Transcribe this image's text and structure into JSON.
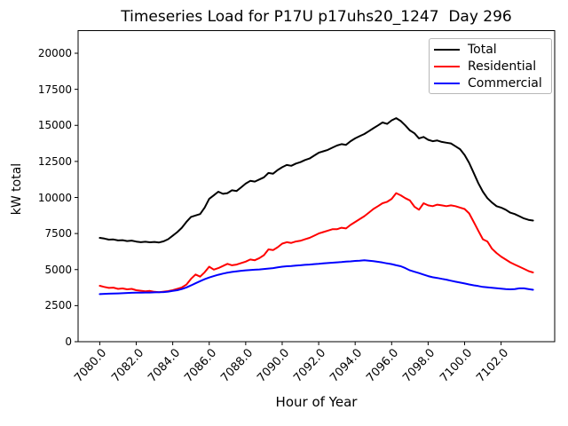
{
  "chart_data": {
    "type": "line",
    "title": "Timeseries Load for P17U p17uhs20_1247  Day 296",
    "xlabel": "Hour of Year",
    "ylabel": "kW total",
    "xlim": [
      7078.8125,
      7104.9375
    ],
    "ylim": [
      0,
      21570
    ],
    "grid": false,
    "legend_position": "upper right",
    "xticks": [
      {
        "value": 7080,
        "label": "7080.0"
      },
      {
        "value": 7082,
        "label": "7082.0"
      },
      {
        "value": 7084,
        "label": "7084.0"
      },
      {
        "value": 7086,
        "label": "7086.0"
      },
      {
        "value": 7088,
        "label": "7088.0"
      },
      {
        "value": 7090,
        "label": "7090.0"
      },
      {
        "value": 7092,
        "label": "7092.0"
      },
      {
        "value": 7094,
        "label": "7094.0"
      },
      {
        "value": 7096,
        "label": "7096.0"
      },
      {
        "value": 7098,
        "label": "7098.0"
      },
      {
        "value": 7100,
        "label": "7100.0"
      },
      {
        "value": 7102,
        "label": "7102.0"
      }
    ],
    "yticks": [
      {
        "value": 0,
        "label": "0"
      },
      {
        "value": 2500,
        "label": "2500"
      },
      {
        "value": 5000,
        "label": "5000"
      },
      {
        "value": 7500,
        "label": "7500"
      },
      {
        "value": 10000,
        "label": "10000"
      },
      {
        "value": 12500,
        "label": "12500"
      },
      {
        "value": 15000,
        "label": "15000"
      },
      {
        "value": 17500,
        "label": "17500"
      },
      {
        "value": 20000,
        "label": "20000"
      }
    ],
    "x": [
      7080.0,
      7080.25,
      7080.5,
      7080.75,
      7081.0,
      7081.25,
      7081.5,
      7081.75,
      7082.0,
      7082.25,
      7082.5,
      7082.75,
      7083.0,
      7083.25,
      7083.5,
      7083.75,
      7084.0,
      7084.25,
      7084.5,
      7084.75,
      7085.0,
      7085.25,
      7085.5,
      7085.75,
      7086.0,
      7086.25,
      7086.5,
      7086.75,
      7087.0,
      7087.25,
      7087.5,
      7087.75,
      7088.0,
      7088.25,
      7088.5,
      7088.75,
      7089.0,
      7089.25,
      7089.5,
      7089.75,
      7090.0,
      7090.25,
      7090.5,
      7090.75,
      7091.0,
      7091.25,
      7091.5,
      7091.75,
      7092.0,
      7092.25,
      7092.5,
      7092.75,
      7093.0,
      7093.25,
      7093.5,
      7093.75,
      7094.0,
      7094.25,
      7094.5,
      7094.75,
      7095.0,
      7095.25,
      7095.5,
      7095.75,
      7096.0,
      7096.25,
      7096.5,
      7096.75,
      7097.0,
      7097.25,
      7097.5,
      7097.75,
      7098.0,
      7098.25,
      7098.5,
      7098.75,
      7099.0,
      7099.25,
      7099.5,
      7099.75,
      7100.0,
      7100.25,
      7100.5,
      7100.75,
      7101.0,
      7101.25,
      7101.5,
      7101.75,
      7102.0,
      7102.25,
      7102.5,
      7102.75,
      7103.0,
      7103.25,
      7103.5,
      7103.75
    ],
    "series": [
      {
        "name": "Total",
        "color": "#000000",
        "values": [
          7200,
          7150,
          7080,
          7090,
          7020,
          7040,
          6980,
          7010,
          6940,
          6900,
          6930,
          6890,
          6920,
          6880,
          6960,
          7110,
          7350,
          7600,
          7900,
          8300,
          8650,
          8750,
          8850,
          9300,
          9900,
          10150,
          10400,
          10250,
          10300,
          10500,
          10450,
          10700,
          10960,
          11150,
          11100,
          11250,
          11400,
          11700,
          11650,
          11900,
          12100,
          12250,
          12200,
          12350,
          12450,
          12600,
          12700,
          12900,
          13100,
          13200,
          13300,
          13450,
          13600,
          13700,
          13650,
          13900,
          14100,
          14250,
          14400,
          14600,
          14800,
          15000,
          15200,
          15100,
          15350,
          15500,
          15300,
          15000,
          14650,
          14450,
          14100,
          14200,
          14000,
          13900,
          13950,
          13850,
          13800,
          13750,
          13550,
          13350,
          12950,
          12400,
          11700,
          11000,
          10400,
          9950,
          9650,
          9400,
          9300,
          9150,
          8950,
          8850,
          8700,
          8550,
          8450,
          8400
        ]
      },
      {
        "name": "Residential",
        "color": "#ff0000",
        "values": [
          3880,
          3800,
          3730,
          3750,
          3660,
          3690,
          3630,
          3660,
          3570,
          3530,
          3490,
          3520,
          3460,
          3430,
          3470,
          3510,
          3570,
          3660,
          3760,
          3960,
          4360,
          4660,
          4510,
          4810,
          5200,
          5000,
          5100,
          5250,
          5400,
          5300,
          5350,
          5450,
          5550,
          5700,
          5650,
          5800,
          6000,
          6400,
          6350,
          6550,
          6800,
          6900,
          6850,
          6950,
          7000,
          7100,
          7200,
          7350,
          7500,
          7600,
          7700,
          7800,
          7800,
          7900,
          7850,
          8100,
          8300,
          8500,
          8700,
          8950,
          9200,
          9400,
          9600,
          9700,
          9900,
          10300,
          10150,
          9950,
          9800,
          9360,
          9150,
          9600,
          9450,
          9400,
          9500,
          9450,
          9400,
          9450,
          9400,
          9300,
          9200,
          8900,
          8300,
          7700,
          7100,
          6950,
          6450,
          6150,
          5900,
          5700,
          5500,
          5350,
          5200,
          5050,
          4900,
          4800
        ]
      },
      {
        "name": "Commercial",
        "color": "#0000ff",
        "values": [
          3300,
          3320,
          3330,
          3340,
          3350,
          3360,
          3380,
          3390,
          3400,
          3400,
          3410,
          3410,
          3420,
          3430,
          3440,
          3470,
          3520,
          3570,
          3650,
          3760,
          3900,
          4050,
          4200,
          4330,
          4450,
          4550,
          4640,
          4720,
          4790,
          4840,
          4880,
          4920,
          4950,
          4970,
          4990,
          5010,
          5040,
          5070,
          5100,
          5150,
          5200,
          5230,
          5250,
          5280,
          5300,
          5330,
          5350,
          5380,
          5400,
          5430,
          5450,
          5480,
          5500,
          5520,
          5550,
          5570,
          5600,
          5620,
          5650,
          5610,
          5580,
          5540,
          5490,
          5430,
          5380,
          5300,
          5230,
          5100,
          4950,
          4850,
          4760,
          4650,
          4550,
          4470,
          4420,
          4360,
          4300,
          4230,
          4160,
          4100,
          4040,
          3970,
          3910,
          3860,
          3800,
          3770,
          3740,
          3710,
          3680,
          3650,
          3630,
          3650,
          3700,
          3700,
          3650,
          3600
        ]
      }
    ]
  }
}
